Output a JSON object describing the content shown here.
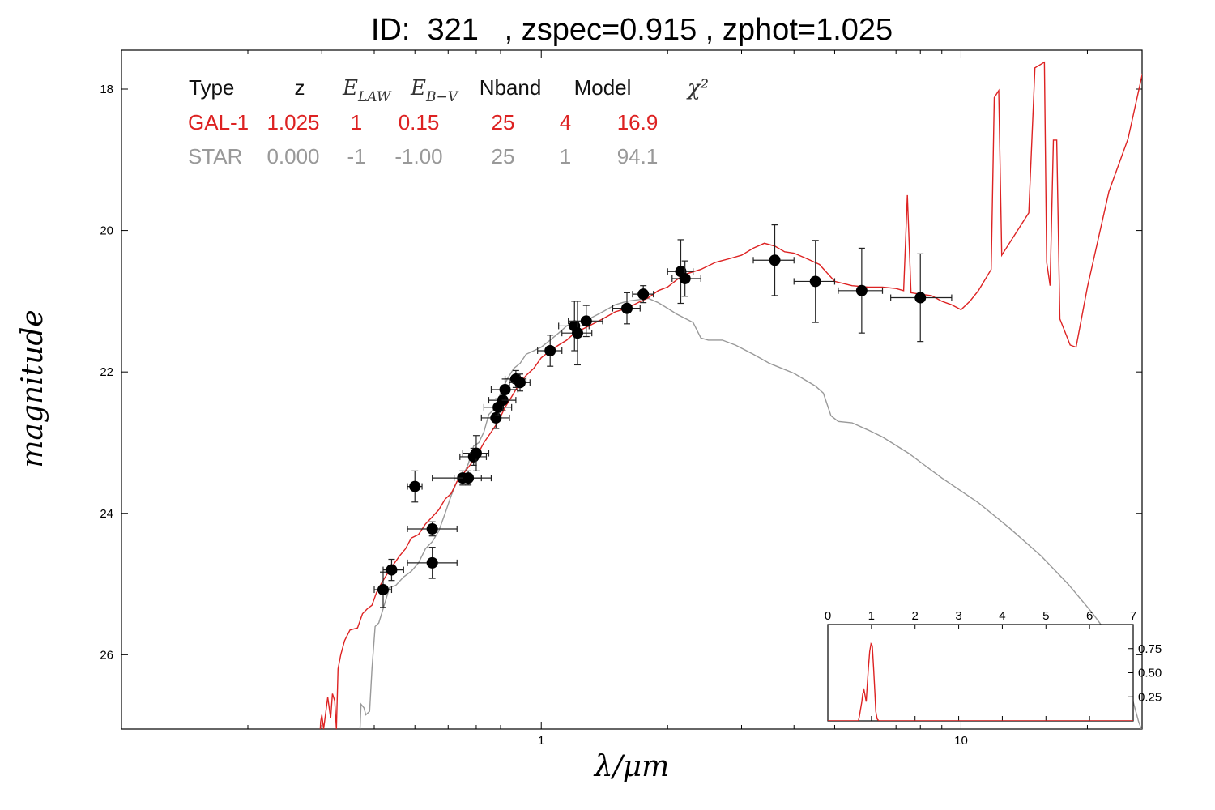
{
  "title": "ID:  321   , zspec=0.915 , zphot=1.025",
  "colors": {
    "galaxy": "#dd2222",
    "star": "#999999",
    "points": "#000000"
  },
  "table": {
    "headers": [
      "Type",
      "z",
      "E_LAW",
      "E_B-V",
      "Nband",
      "Model",
      "χ²"
    ],
    "rows": [
      {
        "type": "GAL-1",
        "z": "1.025",
        "elaw": "1",
        "ebv": "0.15",
        "nband": "25",
        "model": "4",
        "chi2": "16.9",
        "color": "#dd2222"
      },
      {
        "type": "STAR",
        "z": "0.000",
        "elaw": "-1",
        "ebv": "-1.00",
        "nband": "25",
        "model": "1",
        "chi2": "94.1",
        "color": "#999999"
      }
    ]
  },
  "chart_data": {
    "type": "scatter",
    "xlabel": "λ/μm",
    "ylabel": "magnitude",
    "xscale": "log",
    "xlim": [
      0.1,
      27
    ],
    "ylim": [
      27.05,
      17.45
    ],
    "xticks": [
      1,
      10
    ],
    "yticks": [
      18,
      20,
      22,
      24,
      26
    ],
    "points": [
      {
        "x": 0.42,
        "y": 25.08,
        "yerr": 0.25,
        "xlo": 0.4,
        "xhi": 0.44
      },
      {
        "x": 0.44,
        "y": 24.8,
        "yerr": 0.15,
        "xlo": 0.42,
        "xhi": 0.47
      },
      {
        "x": 0.5,
        "y": 23.62,
        "yerr": 0.22,
        "xlo": 0.48,
        "xhi": 0.52
      },
      {
        "x": 0.55,
        "y": 24.22,
        "yerr": 0.1,
        "xlo": 0.48,
        "xhi": 0.63
      },
      {
        "x": 0.55,
        "y": 24.7,
        "yerr": 0.22,
        "xlo": 0.48,
        "xhi": 0.63
      },
      {
        "x": 0.65,
        "y": 23.5,
        "yerr": 0.1,
        "xlo": 0.55,
        "xhi": 0.76
      },
      {
        "x": 0.67,
        "y": 23.5,
        "yerr": 0.1,
        "xlo": 0.62,
        "xhi": 0.72
      },
      {
        "x": 0.69,
        "y": 23.2,
        "yerr": 0.12,
        "xlo": 0.64,
        "xhi": 0.74
      },
      {
        "x": 0.7,
        "y": 23.15,
        "yerr": 0.25,
        "xlo": 0.65,
        "xhi": 0.75
      },
      {
        "x": 0.78,
        "y": 22.65,
        "yerr": 0.15,
        "xlo": 0.72,
        "xhi": 0.84
      },
      {
        "x": 0.79,
        "y": 22.5,
        "yerr": 0.12,
        "xlo": 0.73,
        "xhi": 0.85
      },
      {
        "x": 0.81,
        "y": 22.4,
        "yerr": 0.15,
        "xlo": 0.75,
        "xhi": 0.87
      },
      {
        "x": 0.82,
        "y": 22.25,
        "yerr": 0.15,
        "xlo": 0.76,
        "xhi": 0.88
      },
      {
        "x": 0.87,
        "y": 22.1,
        "yerr": 0.12,
        "xlo": 0.82,
        "xhi": 0.92
      },
      {
        "x": 0.89,
        "y": 22.15,
        "yerr": 0.12,
        "xlo": 0.84,
        "xhi": 0.94
      },
      {
        "x": 1.05,
        "y": 21.7,
        "yerr": 0.22,
        "xlo": 0.98,
        "xhi": 1.12
      },
      {
        "x": 1.2,
        "y": 21.35,
        "yerr": 0.35,
        "xlo": 1.1,
        "xhi": 1.3
      },
      {
        "x": 1.22,
        "y": 21.45,
        "yerr": 0.45,
        "xlo": 1.12,
        "xhi": 1.32
      },
      {
        "x": 1.28,
        "y": 21.28,
        "yerr": 0.22,
        "xlo": 1.16,
        "xhi": 1.4
      },
      {
        "x": 1.6,
        "y": 21.1,
        "yerr": 0.22,
        "xlo": 1.48,
        "xhi": 1.72
      },
      {
        "x": 1.75,
        "y": 20.9,
        "yerr": 0.12,
        "xlo": 1.65,
        "xhi": 1.85
      },
      {
        "x": 2.15,
        "y": 20.58,
        "yerr": 0.45,
        "xlo": 2.0,
        "xhi": 2.3
      },
      {
        "x": 2.2,
        "y": 20.68,
        "yerr": 0.25,
        "xlo": 2.05,
        "xhi": 2.4
      },
      {
        "x": 3.6,
        "y": 20.42,
        "yerr": 0.5,
        "xlo": 3.2,
        "xhi": 4.0
      },
      {
        "x": 4.5,
        "y": 20.72,
        "yerr": 0.58,
        "xlo": 4.0,
        "xhi": 5.0
      },
      {
        "x": 5.8,
        "y": 20.85,
        "yerr": 0.6,
        "xlo": 5.1,
        "xhi": 6.5
      },
      {
        "x": 8.0,
        "y": 20.95,
        "yerr": 0.62,
        "xlo": 6.8,
        "xhi": 9.5
      }
    ],
    "galaxy_model": [
      [
        0.2975,
        27.05
      ],
      [
        0.298,
        26.95
      ],
      [
        0.3,
        26.85
      ],
      [
        0.303,
        27.05
      ],
      [
        0.31,
        26.6
      ],
      [
        0.315,
        26.9
      ],
      [
        0.318,
        26.55
      ],
      [
        0.322,
        26.65
      ],
      [
        0.325,
        27.05
      ],
      [
        0.328,
        26.2
      ],
      [
        0.333,
        26.0
      ],
      [
        0.34,
        25.8
      ],
      [
        0.35,
        25.65
      ],
      [
        0.365,
        25.62
      ],
      [
        0.375,
        25.42
      ],
      [
        0.385,
        25.35
      ],
      [
        0.395,
        25.3
      ],
      [
        0.405,
        25.12
      ],
      [
        0.415,
        25.0
      ],
      [
        0.43,
        24.85
      ],
      [
        0.445,
        24.72
      ],
      [
        0.46,
        24.6
      ],
      [
        0.475,
        24.5
      ],
      [
        0.49,
        24.35
      ],
      [
        0.51,
        24.3
      ],
      [
        0.53,
        24.15
      ],
      [
        0.55,
        24.05
      ],
      [
        0.57,
        23.95
      ],
      [
        0.59,
        23.8
      ],
      [
        0.61,
        23.72
      ],
      [
        0.63,
        23.55
      ],
      [
        0.65,
        23.45
      ],
      [
        0.67,
        23.35
      ],
      [
        0.7,
        23.2
      ],
      [
        0.73,
        23.0
      ],
      [
        0.76,
        22.85
      ],
      [
        0.79,
        22.7
      ],
      [
        0.82,
        22.5
      ],
      [
        0.85,
        22.35
      ],
      [
        0.88,
        22.2
      ],
      [
        0.92,
        22.05
      ],
      [
        0.96,
        21.95
      ],
      [
        1.0,
        21.8
      ],
      [
        1.05,
        21.7
      ],
      [
        1.1,
        21.62
      ],
      [
        1.15,
        21.55
      ],
      [
        1.2,
        21.45
      ],
      [
        1.3,
        21.35
      ],
      [
        1.4,
        21.25
      ],
      [
        1.5,
        21.15
      ],
      [
        1.6,
        21.1
      ],
      [
        1.7,
        21.02
      ],
      [
        1.8,
        20.95
      ],
      [
        1.9,
        20.85
      ],
      [
        2.0,
        20.8
      ],
      [
        2.1,
        20.7
      ],
      [
        2.2,
        20.62
      ],
      [
        2.4,
        20.55
      ],
      [
        2.6,
        20.45
      ],
      [
        2.8,
        20.4
      ],
      [
        3.0,
        20.35
      ],
      [
        3.2,
        20.25
      ],
      [
        3.4,
        20.18
      ],
      [
        3.6,
        20.22
      ],
      [
        3.8,
        20.3
      ],
      [
        4.0,
        20.32
      ],
      [
        4.3,
        20.4
      ],
      [
        4.6,
        20.48
      ],
      [
        5.0,
        20.72
      ],
      [
        5.5,
        20.78
      ],
      [
        6.0,
        20.8
      ],
      [
        6.5,
        20.8
      ],
      [
        7.0,
        20.82
      ],
      [
        7.3,
        20.85
      ],
      [
        7.45,
        19.5
      ],
      [
        7.6,
        20.88
      ],
      [
        8.0,
        20.9
      ],
      [
        8.5,
        20.92
      ],
      [
        9.0,
        21.0
      ],
      [
        9.5,
        21.05
      ],
      [
        10.0,
        21.12
      ],
      [
        10.5,
        21.0
      ],
      [
        11.0,
        20.85
      ],
      [
        11.8,
        20.55
      ],
      [
        12.0,
        18.12
      ],
      [
        12.3,
        18.02
      ],
      [
        12.5,
        20.35
      ],
      [
        14.5,
        19.75
      ],
      [
        15.0,
        17.7
      ],
      [
        15.8,
        17.62
      ],
      [
        16.0,
        20.45
      ],
      [
        16.3,
        20.78
      ],
      [
        16.6,
        18.72
      ],
      [
        16.9,
        18.72
      ],
      [
        17.2,
        21.25
      ],
      [
        18.2,
        21.62
      ],
      [
        18.8,
        21.65
      ],
      [
        20.0,
        20.8
      ],
      [
        22.5,
        19.45
      ],
      [
        25.0,
        18.7
      ],
      [
        27.0,
        17.8
      ],
      [
        27.5,
        17.9
      ]
    ],
    "star_model": [
      [
        0.37,
        27.05
      ],
      [
        0.372,
        26.7
      ],
      [
        0.378,
        26.75
      ],
      [
        0.382,
        26.85
      ],
      [
        0.39,
        26.8
      ],
      [
        0.395,
        26.2
      ],
      [
        0.402,
        25.6
      ],
      [
        0.41,
        25.55
      ],
      [
        0.42,
        25.35
      ],
      [
        0.435,
        25.05
      ],
      [
        0.45,
        25.02
      ],
      [
        0.47,
        24.9
      ],
      [
        0.49,
        24.82
      ],
      [
        0.51,
        24.7
      ],
      [
        0.53,
        24.5
      ],
      [
        0.55,
        24.4
      ],
      [
        0.57,
        24.25
      ],
      [
        0.59,
        24.0
      ],
      [
        0.61,
        23.75
      ],
      [
        0.63,
        23.55
      ],
      [
        0.65,
        23.48
      ],
      [
        0.67,
        23.3
      ],
      [
        0.69,
        23.05
      ],
      [
        0.71,
        23.0
      ],
      [
        0.73,
        22.85
      ],
      [
        0.75,
        22.6
      ],
      [
        0.78,
        22.5
      ],
      [
        0.8,
        22.3
      ],
      [
        0.83,
        22.1
      ],
      [
        0.86,
        21.95
      ],
      [
        0.89,
        21.88
      ],
      [
        0.92,
        21.75
      ],
      [
        0.96,
        21.7
      ],
      [
        1.0,
        21.65
      ],
      [
        1.05,
        21.55
      ],
      [
        1.1,
        21.45
      ],
      [
        1.15,
        21.35
      ],
      [
        1.2,
        21.3
      ],
      [
        1.3,
        21.25
      ],
      [
        1.4,
        21.15
      ],
      [
        1.5,
        21.05
      ],
      [
        1.6,
        21.0
      ],
      [
        1.7,
        20.98
      ],
      [
        1.8,
        20.96
      ],
      [
        1.9,
        21.02
      ],
      [
        2.0,
        21.1
      ],
      [
        2.1,
        21.18
      ],
      [
        2.3,
        21.3
      ],
      [
        2.4,
        21.52
      ],
      [
        2.5,
        21.55
      ],
      [
        2.7,
        21.55
      ],
      [
        2.9,
        21.62
      ],
      [
        3.2,
        21.75
      ],
      [
        3.5,
        21.88
      ],
      [
        4.0,
        22.02
      ],
      [
        4.5,
        22.2
      ],
      [
        4.7,
        22.3
      ],
      [
        4.9,
        22.62
      ],
      [
        5.1,
        22.7
      ],
      [
        5.5,
        22.72
      ],
      [
        6.0,
        22.82
      ],
      [
        6.5,
        22.92
      ],
      [
        7.5,
        23.15
      ],
      [
        9.0,
        23.5
      ],
      [
        11.0,
        23.85
      ],
      [
        13.0,
        24.2
      ],
      [
        15.5,
        24.6
      ],
      [
        18.0,
        25.0
      ],
      [
        20.5,
        25.4
      ],
      [
        23.0,
        25.8
      ],
      [
        25.0,
        26.4
      ],
      [
        26.5,
        26.95
      ],
      [
        26.9,
        27.05
      ]
    ],
    "inset": {
      "xlim": [
        0,
        7
      ],
      "ylim": [
        0,
        1.0
      ],
      "xticks": [
        0,
        1,
        2,
        3,
        4,
        5,
        6,
        7
      ],
      "yticks": [
        0.25,
        0.5,
        0.75
      ],
      "pdf": [
        [
          0,
          0
        ],
        [
          0.7,
          0
        ],
        [
          0.72,
          0.04
        ],
        [
          0.75,
          0.12
        ],
        [
          0.78,
          0.2
        ],
        [
          0.8,
          0.28
        ],
        [
          0.83,
          0.32
        ],
        [
          0.86,
          0.25
        ],
        [
          0.88,
          0.2
        ],
        [
          0.9,
          0.35
        ],
        [
          0.93,
          0.55
        ],
        [
          0.96,
          0.72
        ],
        [
          0.99,
          0.8
        ],
        [
          1.02,
          0.78
        ],
        [
          1.05,
          0.55
        ],
        [
          1.08,
          0.28
        ],
        [
          1.1,
          0.1
        ],
        [
          1.13,
          0.02
        ],
        [
          1.17,
          0
        ],
        [
          7,
          0
        ]
      ]
    }
  }
}
